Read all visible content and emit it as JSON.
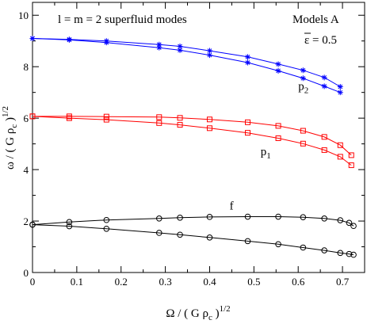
{
  "chart_data": {
    "type": "line",
    "annotation_title": "l = m = 2   superfluid   modes",
    "model_label": "Models A",
    "epsilon_label": "ε = 0.5",
    "xlabel": {
      "main": "Ω / ( G ρ",
      "sub": "c",
      "close": " )",
      "sup": "1/2"
    },
    "ylabel": {
      "main": "ω / ( G ρ",
      "sub": "c",
      "close": " )",
      "sup": "1/2"
    },
    "xlim": [
      0,
      0.75
    ],
    "ylim": [
      0,
      10.5
    ],
    "x_ticks": [
      0,
      0.1,
      0.2,
      0.3,
      0.4,
      0.5,
      0.6,
      0.7
    ],
    "x_tick_labels": [
      "0",
      "0.1",
      "0.2",
      "0.3",
      "0.4",
      "0.5",
      "0.6",
      "0.7"
    ],
    "y_ticks": [
      0,
      2,
      4,
      6,
      8,
      10
    ],
    "y_tick_labels": [
      "0",
      "2",
      "4",
      "6",
      "8",
      "10"
    ],
    "grid": false,
    "mode_labels": [
      {
        "text": "p",
        "sub": "2",
        "x": 0.6,
        "y": 7.1
      },
      {
        "text": "p",
        "sub": "1",
        "x": 0.515,
        "y": 4.55
      },
      {
        "text": "f",
        "sub": "",
        "x": 0.445,
        "y": 2.45
      }
    ],
    "series": [
      {
        "color": "#0000ff",
        "marker": "star",
        "x": [
          0,
          0.083,
          0.167,
          0.286,
          0.333,
          0.4,
          0.486,
          0.555,
          0.611,
          0.659,
          0.695
        ],
        "y": [
          9.1,
          9.06,
          9.0,
          8.86,
          8.79,
          8.62,
          8.38,
          8.1,
          7.86,
          7.58,
          7.22
        ]
      },
      {
        "color": "#0000ff",
        "marker": "star",
        "x": [
          0,
          0.083,
          0.167,
          0.286,
          0.333,
          0.4,
          0.486,
          0.555,
          0.611,
          0.659,
          0.695
        ],
        "y": [
          9.1,
          9.04,
          8.94,
          8.74,
          8.64,
          8.45,
          8.16,
          7.84,
          7.55,
          7.24,
          7.0
        ]
      },
      {
        "color": "#ff0000",
        "marker": "square",
        "x": [
          0,
          0.083,
          0.167,
          0.286,
          0.333,
          0.4,
          0.486,
          0.555,
          0.611,
          0.659,
          0.695,
          0.72
        ],
        "y": [
          6.07,
          6.07,
          6.06,
          6.04,
          6.01,
          5.95,
          5.84,
          5.7,
          5.51,
          5.27,
          4.95,
          4.56
        ]
      },
      {
        "color": "#ff0000",
        "marker": "square",
        "x": [
          0,
          0.083,
          0.167,
          0.286,
          0.333,
          0.4,
          0.486,
          0.555,
          0.611,
          0.659,
          0.695,
          0.72
        ],
        "y": [
          6.07,
          6.0,
          5.94,
          5.81,
          5.74,
          5.61,
          5.43,
          5.22,
          5.01,
          4.76,
          4.5,
          4.17
        ]
      },
      {
        "color": "#000000",
        "marker": "circle",
        "x": [
          0,
          0.083,
          0.167,
          0.286,
          0.333,
          0.4,
          0.486,
          0.555,
          0.611,
          0.659,
          0.695,
          0.715,
          0.725
        ],
        "y": [
          1.86,
          1.96,
          2.04,
          2.1,
          2.13,
          2.16,
          2.17,
          2.17,
          2.15,
          2.1,
          2.03,
          1.93,
          1.81
        ]
      },
      {
        "color": "#000000",
        "marker": "circle",
        "x": [
          0,
          0.083,
          0.167,
          0.286,
          0.333,
          0.4,
          0.486,
          0.555,
          0.611,
          0.659,
          0.695,
          0.715,
          0.725
        ],
        "y": [
          1.86,
          1.8,
          1.7,
          1.54,
          1.47,
          1.36,
          1.22,
          1.1,
          0.97,
          0.86,
          0.76,
          0.72,
          0.69
        ]
      }
    ]
  }
}
